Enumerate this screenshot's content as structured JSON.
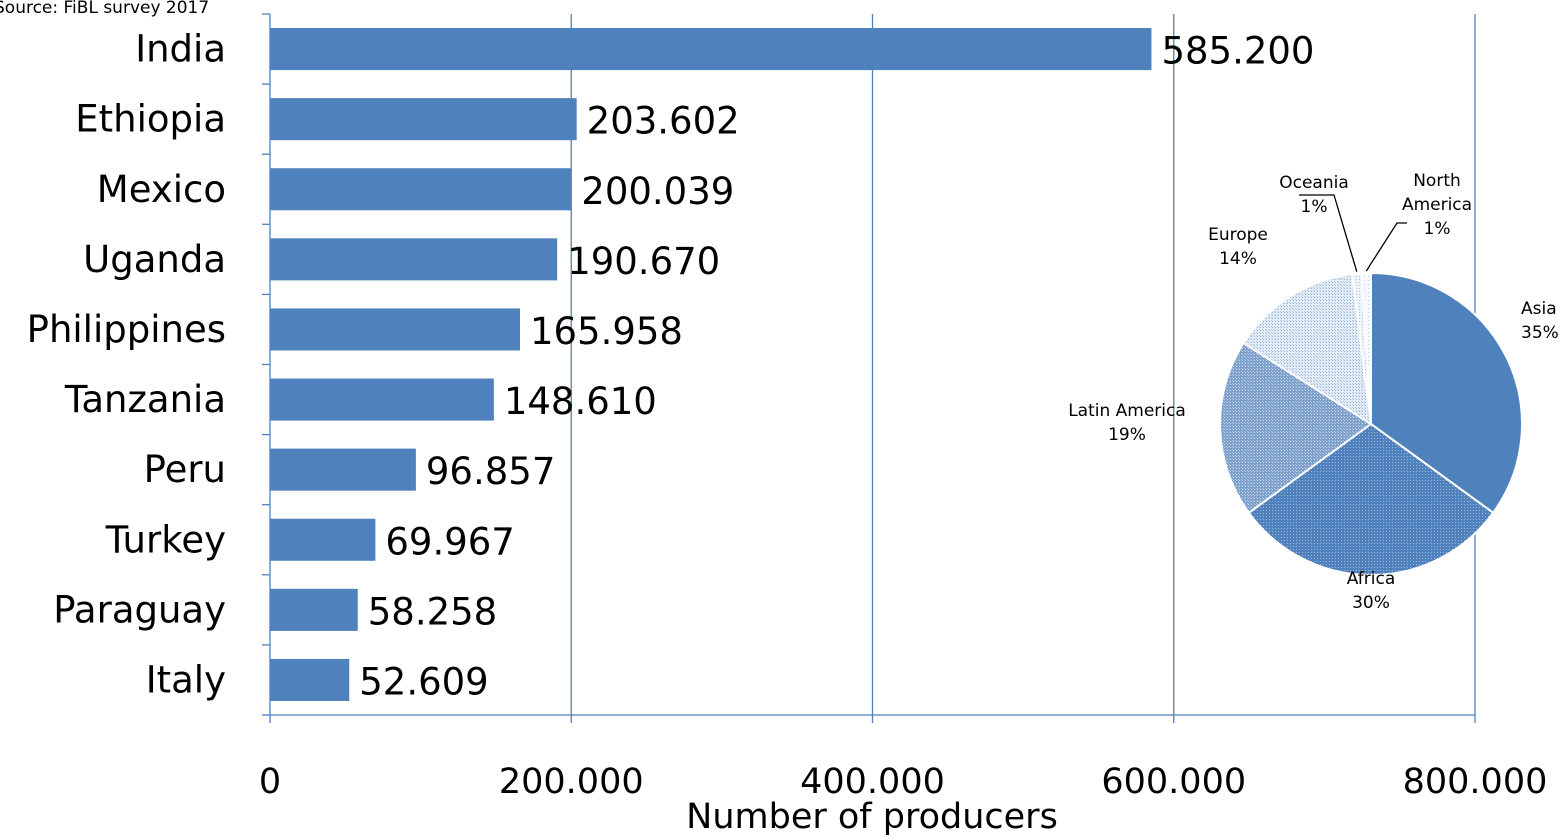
{
  "source_note": "Source: FiBL survey 2017",
  "chart_data": [
    {
      "type": "bar",
      "orientation": "horizontal",
      "categories": [
        "India",
        "Ethiopia",
        "Mexico",
        "Uganda",
        "Philippines",
        "Tanzania",
        "Peru",
        "Turkey",
        "Paraguay",
        "Italy"
      ],
      "values": [
        585200,
        203602,
        200039,
        190670,
        165958,
        148610,
        96857,
        69967,
        58258,
        52609
      ],
      "value_labels": [
        "585.200",
        "203.602",
        "200.039",
        "190.670",
        "165.958",
        "148.610",
        "96.857",
        "69.967",
        "58.258",
        "52.609"
      ],
      "xlabel": "Number of producers",
      "xlim": [
        0,
        800000
      ],
      "xticks": [
        0,
        200000,
        400000,
        600000,
        800000
      ],
      "xtick_labels": [
        "0",
        "200.000",
        "400.000",
        "600.000",
        "800.000"
      ],
      "grid": "vertical",
      "bar_color": "#4F81BD"
    },
    {
      "type": "pie",
      "slices": [
        {
          "name": "Asia",
          "value": 35,
          "label": "Asia\n35%",
          "pattern": "solid"
        },
        {
          "name": "Africa",
          "value": 30,
          "label": "Africa\n30%",
          "pattern": "dense"
        },
        {
          "name": "Latin America",
          "value": 19,
          "label": "Latin America\n19%",
          "pattern": "medium"
        },
        {
          "name": "Europe",
          "value": 14,
          "label": "Europe\n14%",
          "pattern": "light"
        },
        {
          "name": "Oceania",
          "value": 1,
          "label": "Oceania\n1%",
          "pattern": "lighter"
        },
        {
          "name": "North America",
          "value": 1,
          "label": "North\nAmerica\n1%",
          "pattern": "lightest"
        }
      ],
      "colors": {
        "fill": "#4F81BD",
        "stroke": "#ffffff"
      }
    }
  ]
}
